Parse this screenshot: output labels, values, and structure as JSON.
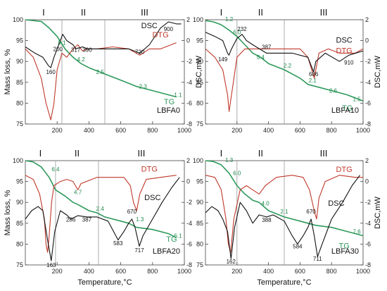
{
  "chart_data": [
    {
      "type": "line",
      "panel_label": "LBFA0",
      "xlabel": "",
      "ylabel": "Mass loss, %",
      "ylabel2": "DSC,mW",
      "xlim": [
        0,
        1000
      ],
      "ylim": [
        75,
        100
      ],
      "y2lim": [
        -8,
        2
      ],
      "xticks": [
        "200",
        "400",
        "600",
        "800",
        "1000"
      ],
      "yticks": [
        "75",
        "80",
        "85",
        "90",
        "95",
        "100"
      ],
      "y2ticks": [
        "-8",
        "-6",
        "-4",
        "-2",
        "0",
        "2"
      ],
      "stages": [
        "I",
        "II",
        "III"
      ],
      "stage_bounds": [
        230,
        500
      ],
      "series": [
        {
          "name": "TG",
          "color": "#2e9a5c",
          "x": [
            0,
            100,
            150,
            200,
            250,
            300,
            350,
            400,
            500,
            600,
            700,
            800,
            900,
            950
          ],
          "y": [
            100,
            99.6,
            98,
            96,
            93,
            91,
            89.5,
            88.5,
            87,
            85.5,
            84,
            83,
            82,
            81.5
          ]
        },
        {
          "name": "DTG",
          "color": "#c0392b",
          "x": [
            0,
            50,
            100,
            130,
            160,
            180,
            200,
            230,
            260,
            300,
            330,
            360,
            390,
            450,
            550,
            650,
            720,
            780,
            850,
            950
          ],
          "y": [
            93,
            91,
            86,
            80,
            76,
            80,
            88,
            92,
            91,
            93,
            94,
            92.5,
            93,
            93,
            93.5,
            93,
            91.5,
            93,
            93,
            94.5
          ]
        },
        {
          "name": "DSC",
          "color": "#111111",
          "x": [
            0,
            60,
            110,
            145,
            160,
            180,
            210,
            235,
            260,
            300,
            317,
            360,
            390,
            450,
            550,
            650,
            720,
            780,
            850,
            900,
            950,
            980
          ],
          "y": [
            93.5,
            92,
            91,
            89,
            88.5,
            91,
            94,
            96.5,
            95,
            94,
            93,
            93.5,
            93,
            93,
            93,
            93,
            92,
            94,
            98,
            99.5,
            99,
            99
          ]
        }
      ],
      "annotations": [
        {
          "text": "8.1",
          "x": 230,
          "y": 94
        },
        {
          "text": "4.2",
          "x": 350,
          "y": 90
        },
        {
          "text": "2.5",
          "x": 470,
          "y": 87
        },
        {
          "text": "2.3",
          "x": 740,
          "y": 83.5
        },
        {
          "text": "1.1",
          "x": 960,
          "y": 81.5
        },
        {
          "text": "160",
          "x": 160,
          "y": 87
        },
        {
          "text": "200",
          "x": 205,
          "y": 92.5
        },
        {
          "text": "317",
          "x": 317,
          "y": 92.3
        },
        {
          "text": "390",
          "x": 390,
          "y": 92.3
        },
        {
          "text": "720",
          "x": 720,
          "y": 91.8
        },
        {
          "text": "900",
          "x": 900,
          "y": 97.3
        }
      ],
      "series_labels": [
        {
          "text": "DSC",
          "x": 780,
          "y": 98
        },
        {
          "text": "DTG",
          "x": 850,
          "y": 95.8
        },
        {
          "text": "TG",
          "x": 905,
          "y": 79.7
        }
      ]
    },
    {
      "type": "line",
      "panel_label": "LBFA10",
      "xlabel": "",
      "ylabel": "",
      "ylabel2": "DSC,mW",
      "xlim": [
        0,
        1000
      ],
      "ylim": [
        75,
        100
      ],
      "y2lim": [
        -8,
        2
      ],
      "xticks": [
        "200",
        "400",
        "600",
        "800",
        "1000"
      ],
      "yticks": [
        "75",
        "80",
        "85",
        "90",
        "95",
        "100"
      ],
      "y2ticks": [
        "-8",
        "-6",
        "-4",
        "-2",
        "0",
        "2"
      ],
      "stages": [
        "I",
        "II",
        "III"
      ],
      "stage_bounds": [
        200,
        500
      ],
      "series": [
        {
          "name": "TG",
          "color": "#2e9a5c",
          "x": [
            0,
            50,
            100,
            150,
            200,
            250,
            300,
            350,
            400,
            500,
            600,
            650,
            700,
            800,
            900,
            1000
          ],
          "y": [
            99.8,
            99.5,
            98.8,
            97.5,
            96,
            94,
            92,
            91,
            89.5,
            88,
            86,
            84.5,
            84,
            83,
            82,
            80.5
          ]
        },
        {
          "name": "DTG",
          "color": "#c0392b",
          "x": [
            0,
            60,
            110,
            140,
            150,
            165,
            200,
            250,
            300,
            400,
            500,
            600,
            650,
            690,
            720,
            780,
            850,
            950,
            1000
          ],
          "y": [
            93,
            91,
            88,
            82,
            78,
            82,
            91,
            93,
            93,
            93,
            93,
            93,
            91,
            86,
            92,
            93,
            92,
            92,
            93
          ]
        },
        {
          "name": "DSC",
          "color": "#111111",
          "x": [
            0,
            60,
            110,
            140,
            149,
            165,
            200,
            232,
            260,
            300,
            387,
            450,
            550,
            650,
            686,
            700,
            760,
            850,
            910,
            1000
          ],
          "y": [
            97,
            96,
            95,
            92,
            91.5,
            93,
            95.5,
            96.5,
            95,
            94,
            92,
            92,
            92,
            91,
            87.5,
            90,
            92,
            90,
            91.5,
            92.5
          ]
        }
      ],
      "annotations": [
        {
          "text": "1.2",
          "x": 150,
          "y": 99.7
        },
        {
          "text": "6.0",
          "x": 200,
          "y": 96.5
        },
        {
          "text": "5.4",
          "x": 350,
          "y": 90.5
        },
        {
          "text": "2.2",
          "x": 520,
          "y": 88.5
        },
        {
          "text": "2.1",
          "x": 680,
          "y": 85
        },
        {
          "text": "2.6",
          "x": 810,
          "y": 82.5
        },
        {
          "text": "1.5",
          "x": 960,
          "y": 80.5
        },
        {
          "text": "149",
          "x": 110,
          "y": 90
        },
        {
          "text": "232",
          "x": 232,
          "y": 97.3
        },
        {
          "text": "387",
          "x": 387,
          "y": 93
        },
        {
          "text": "686",
          "x": 686,
          "y": 86.5
        },
        {
          "text": "910",
          "x": 910,
          "y": 89.3
        }
      ],
      "series_labels": [
        {
          "text": "DSC",
          "x": 880,
          "y": 94.5
        },
        {
          "text": "DTG",
          "x": 880,
          "y": 92
        },
        {
          "text": "TG",
          "x": 900,
          "y": 78.2
        }
      ]
    },
    {
      "type": "line",
      "panel_label": "LBFA20",
      "xlabel": "Temperature,°C",
      "ylabel": "Mass loss, %",
      "ylabel2": "",
      "xlim": [
        0,
        1000
      ],
      "ylim": [
        75,
        100
      ],
      "y2lim": [
        -8,
        2
      ],
      "xticks": [
        "200",
        "400",
        "600",
        "800",
        "1000"
      ],
      "yticks": [
        "75",
        "80",
        "85",
        "90",
        "95",
        "100"
      ],
      "y2ticks": [
        "-8",
        "-6",
        "-4",
        "-2",
        "0",
        "2"
      ],
      "stages": [
        "I",
        "II",
        "III"
      ],
      "stage_bounds": [
        190,
        460
      ],
      "series": [
        {
          "name": "TG",
          "color": "#2e9a5c",
          "x": [
            0,
            50,
            100,
            150,
            190,
            250,
            300,
            330,
            400,
            450,
            500,
            600,
            650,
            700,
            800,
            900,
            950
          ],
          "y": [
            100,
            99.7,
            98.5,
            96,
            93,
            91.5,
            90,
            89.5,
            88,
            87.5,
            86.5,
            85.5,
            85,
            84,
            83.5,
            82.5,
            81.5
          ]
        },
        {
          "name": "DTG",
          "color": "#c0392b",
          "x": [
            0,
            50,
            90,
            120,
            130,
            140,
            150,
            165,
            180,
            220,
            260,
            300,
            330,
            350,
            450,
            550,
            620,
            660,
            680,
            700,
            720,
            760,
            850,
            950
          ],
          "y": [
            96.5,
            95.5,
            92,
            86,
            80,
            78,
            82,
            90,
            94,
            95,
            95.5,
            95,
            93,
            94.5,
            96,
            96,
            96,
            94,
            90,
            88,
            92,
            95.5,
            96,
            96.5
          ]
        },
        {
          "name": "DSC",
          "color": "#111111",
          "x": [
            0,
            40,
            80,
            110,
            140,
            163,
            185,
            220,
            260,
            286,
            330,
            387,
            450,
            520,
            583,
            620,
            650,
            670,
            690,
            717,
            740,
            800,
            860,
            920,
            970
          ],
          "y": [
            86,
            88,
            89,
            88,
            81,
            76,
            83,
            88,
            87,
            86,
            86.8,
            86.5,
            86.5,
            85.5,
            81,
            83,
            85,
            86,
            84,
            79.5,
            82,
            86,
            90,
            93.5,
            96
          ]
        }
      ],
      "annotations": [
        {
          "text": "6.4",
          "x": 190,
          "y": 97.5
        },
        {
          "text": "4.7",
          "x": 330,
          "y": 92
        },
        {
          "text": "2.4",
          "x": 470,
          "y": 88
        },
        {
          "text": "1.3",
          "x": 720,
          "y": 85.5
        },
        {
          "text": "6.1",
          "x": 960,
          "y": 81.5
        },
        {
          "text": "163",
          "x": 163,
          "y": 74.5
        },
        {
          "text": "286",
          "x": 286,
          "y": 85.4
        },
        {
          "text": "387",
          "x": 387,
          "y": 85.4
        },
        {
          "text": "583",
          "x": 583,
          "y": 79.7
        },
        {
          "text": "670",
          "x": 670,
          "y": 87.3
        },
        {
          "text": "717",
          "x": 717,
          "y": 78
        }
      ],
      "series_labels": [
        {
          "text": "DTG",
          "x": 780,
          "y": 97.4
        },
        {
          "text": "DSC",
          "x": 800,
          "y": 90.5
        },
        {
          "text": "TG",
          "x": 920,
          "y": 80.6
        }
      ]
    },
    {
      "type": "line",
      "panel_label": "LBFA30",
      "xlabel": "Temperature,°C",
      "ylabel": "",
      "ylabel2": "DSC,mW",
      "xlim": [
        0,
        1000
      ],
      "ylim": [
        75,
        100
      ],
      "y2lim": [
        -8,
        2
      ],
      "xticks": [
        "200",
        "400",
        "600",
        "800",
        "1000"
      ],
      "yticks": [
        "75",
        "80",
        "85",
        "90",
        "95",
        "100"
      ],
      "y2ticks": [
        "-8",
        "-6",
        "-4",
        "-2",
        "0",
        "2"
      ],
      "stages": [
        "I",
        "II",
        "III"
      ],
      "stage_bounds": [
        200,
        500
      ],
      "series": [
        {
          "name": "TG",
          "color": "#2e9a5c",
          "x": [
            0,
            50,
            100,
            150,
            200,
            250,
            300,
            340,
            400,
            500,
            600,
            700,
            800,
            900,
            1000
          ],
          "y": [
            100,
            99.8,
            99,
            97,
            94,
            92,
            90.5,
            90,
            88,
            86.5,
            85.5,
            84.5,
            84,
            83,
            82
          ]
        },
        {
          "name": "DTG",
          "color": "#c0392b",
          "x": [
            0,
            60,
            100,
            130,
            145,
            160,
            180,
            220,
            260,
            300,
            340,
            380,
            450,
            550,
            620,
            660,
            690,
            705,
            720,
            760,
            850,
            950,
            1000
          ],
          "y": [
            96.5,
            96,
            93,
            86,
            80,
            78,
            86,
            93,
            94,
            93,
            92,
            94,
            96,
            96.5,
            96,
            93,
            88,
            86,
            91,
            95,
            96.5,
            96,
            96
          ]
        },
        {
          "name": "DSC",
          "color": "#111111",
          "x": [
            0,
            40,
            80,
            110,
            140,
            162,
            185,
            220,
            260,
            300,
            340,
            388,
            430,
            500,
            550,
            584,
            620,
            650,
            670,
            690,
            711,
            740,
            800,
            870,
            930,
            980
          ],
          "y": [
            87.5,
            89,
            88,
            86,
            83,
            76.5,
            84,
            90,
            88,
            85,
            87,
            86.5,
            87,
            85.5,
            82,
            80,
            82,
            84,
            86,
            82,
            77,
            80,
            86,
            90,
            94,
            96.5
          ]
        }
      ],
      "annotations": [
        {
          "text": "1.3",
          "x": 150,
          "y": 99.7
        },
        {
          "text": "6.0",
          "x": 200,
          "y": 96.5
        },
        {
          "text": "4.0",
          "x": 380,
          "y": 89.3
        },
        {
          "text": "2.1",
          "x": 500,
          "y": 87.3
        },
        {
          "text": "7.6",
          "x": 960,
          "y": 82.5
        },
        {
          "text": "162",
          "x": 162,
          "y": 75.3
        },
        {
          "text": "388",
          "x": 388,
          "y": 85.3
        },
        {
          "text": "584",
          "x": 584,
          "y": 79
        },
        {
          "text": "670",
          "x": 670,
          "y": 87.3
        },
        {
          "text": "711",
          "x": 711,
          "y": 76
        }
      ],
      "series_labels": [
        {
          "text": "DTG",
          "x": 880,
          "y": 97.3
        },
        {
          "text": "DSC",
          "x": 830,
          "y": 89.2
        },
        {
          "text": "TG",
          "x": 880,
          "y": 79
        }
      ]
    }
  ]
}
